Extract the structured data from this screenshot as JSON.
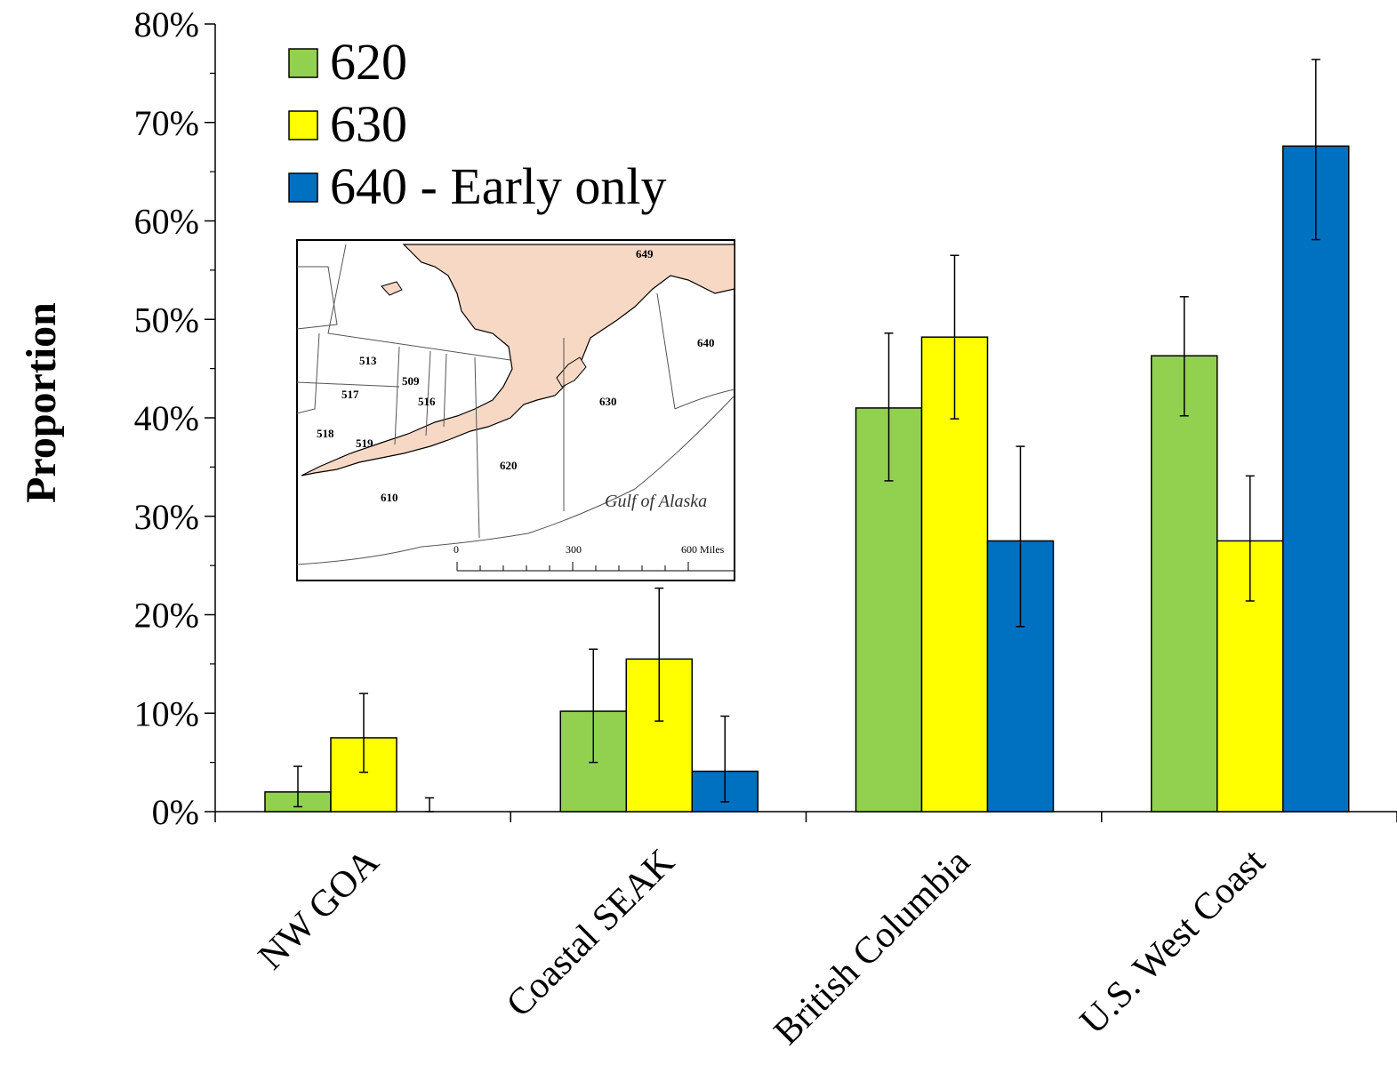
{
  "chart_data": {
    "type": "bar",
    "ylabel": "Proportion",
    "xlabel": "",
    "ylim": [
      0,
      80
    ],
    "y_unit": "%",
    "y_ticks": [
      "0%",
      "10%",
      "20%",
      "30%",
      "40%",
      "50%",
      "60%",
      "70%",
      "80%"
    ],
    "categories": [
      "NW GOA",
      "Coastal SEAK",
      "British Columbia",
      "U.S. West Coast"
    ],
    "series": [
      {
        "name": "620",
        "color": "#92d050",
        "values": [
          2,
          10.2,
          41,
          46.3
        ],
        "err_low": [
          0.5,
          5,
          33.6,
          40.2
        ],
        "err_high": [
          4.6,
          16.5,
          48.6,
          52.3
        ]
      },
      {
        "name": "630",
        "color": "#ffff00",
        "values": [
          7.5,
          15.5,
          48.2,
          27.5
        ],
        "err_low": [
          4,
          9.2,
          39.9,
          21.4
        ],
        "err_high": [
          12,
          22.7,
          56.5,
          34.1
        ]
      },
      {
        "name": "640 - Early only",
        "color": "#0070c0",
        "values": [
          0,
          4.1,
          27.5,
          67.6
        ],
        "err_low": [
          0,
          1,
          18.8,
          58.1
        ],
        "err_high": [
          1.4,
          9.7,
          37.1,
          76.4
        ]
      }
    ],
    "legend_position": "top-left",
    "grid": false,
    "inset_map": {
      "area_labels": [
        "649",
        "640",
        "513",
        "509",
        "517",
        "516",
        "630",
        "518",
        "519",
        "620",
        "610"
      ],
      "place_label": "Gulf of Alaska",
      "scale_labels": [
        "0",
        "300",
        "600 Miles"
      ]
    }
  }
}
